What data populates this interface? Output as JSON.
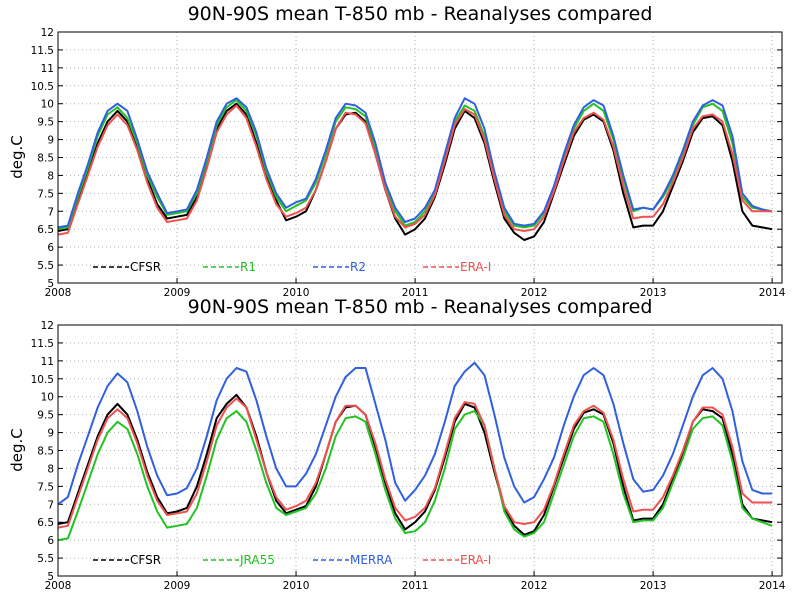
{
  "chart_data": [
    {
      "type": "line",
      "title": "90N-90S mean T-850 mb - Reanalyses compared",
      "ylabel": "deg.C",
      "xlabel": "",
      "x_ticks": [
        "2008",
        "2009",
        "2010",
        "2011",
        "2012",
        "2013",
        "2014"
      ],
      "y_ticks": [
        "5",
        "5.5",
        "6",
        "6.5",
        "7",
        "7.5",
        "8",
        "8.5",
        "9",
        "9.5",
        "10",
        "10.5",
        "11",
        "11.5",
        "12"
      ],
      "xlim": [
        2008.0,
        2014.083
      ],
      "ylim": [
        5,
        12
      ],
      "grid": true,
      "legend": "bottom-left",
      "series": [
        {
          "name": "CFSR",
          "color": "#000000",
          "values": [
            6.45,
            6.5,
            7.3,
            8.1,
            8.9,
            9.5,
            9.8,
            9.5,
            8.8,
            7.9,
            7.2,
            6.8,
            6.85,
            6.9,
            7.4,
            8.3,
            9.3,
            9.8,
            10.0,
            9.7,
            8.9,
            8.0,
            7.3,
            6.75,
            6.85,
            7.0,
            7.6,
            8.4,
            9.3,
            9.7,
            9.75,
            9.5,
            8.6,
            7.6,
            6.8,
            6.35,
            6.5,
            6.8,
            7.4,
            8.3,
            9.3,
            9.8,
            9.6,
            8.9,
            7.8,
            6.8,
            6.4,
            6.2,
            6.3,
            6.7,
            7.5,
            8.3,
            9.1,
            9.55,
            9.7,
            9.5,
            8.7,
            7.5,
            6.55,
            6.6,
            6.6,
            7.0,
            7.7,
            8.4,
            9.2,
            9.6,
            9.65,
            9.4,
            8.4,
            7.0,
            6.6,
            6.55,
            6.5
          ]
        },
        {
          "name": "R1",
          "color": "#22c322",
          "values": [
            6.5,
            6.55,
            7.4,
            8.2,
            9.1,
            9.7,
            9.9,
            9.6,
            8.9,
            8.0,
            7.4,
            6.9,
            6.95,
            7.0,
            7.5,
            8.4,
            9.4,
            9.9,
            10.1,
            9.8,
            9.1,
            8.1,
            7.4,
            7.0,
            7.15,
            7.3,
            7.8,
            8.6,
            9.5,
            9.9,
            9.85,
            9.65,
            8.8,
            7.7,
            7.0,
            6.6,
            6.7,
            7.0,
            7.5,
            8.5,
            9.5,
            9.95,
            9.8,
            9.1,
            8.0,
            7.0,
            6.6,
            6.55,
            6.6,
            6.95,
            7.6,
            8.5,
            9.3,
            9.8,
            10.0,
            9.8,
            9.0,
            7.9,
            7.0,
            7.1,
            7.05,
            7.4,
            7.9,
            8.6,
            9.4,
            9.9,
            10.0,
            9.8,
            8.9,
            7.4,
            7.1,
            7.05,
            7.0
          ]
        },
        {
          "name": "R2",
          "color": "#3060e0",
          "values": [
            6.55,
            6.6,
            7.5,
            8.3,
            9.2,
            9.8,
            10.0,
            9.8,
            9.0,
            8.1,
            7.5,
            6.95,
            7.0,
            7.05,
            7.6,
            8.5,
            9.5,
            10.0,
            10.15,
            9.9,
            9.2,
            8.2,
            7.5,
            7.1,
            7.25,
            7.35,
            7.9,
            8.7,
            9.6,
            10.0,
            9.95,
            9.75,
            8.9,
            7.8,
            7.1,
            6.7,
            6.8,
            7.1,
            7.6,
            8.6,
            9.6,
            10.15,
            10.0,
            9.3,
            8.1,
            7.1,
            6.65,
            6.6,
            6.65,
            7.0,
            7.7,
            8.6,
            9.4,
            9.9,
            10.1,
            9.95,
            9.1,
            8.0,
            7.05,
            7.1,
            7.05,
            7.45,
            8.0,
            8.7,
            9.5,
            9.95,
            10.1,
            9.95,
            9.1,
            7.5,
            7.15,
            7.05,
            7.0
          ]
        },
        {
          "name": "ERA-I",
          "color": "#f05050",
          "values": [
            6.35,
            6.4,
            7.2,
            8.0,
            8.8,
            9.4,
            9.7,
            9.4,
            8.7,
            7.8,
            7.1,
            6.7,
            6.75,
            6.8,
            7.3,
            8.2,
            9.2,
            9.7,
            9.95,
            9.6,
            8.8,
            7.9,
            7.2,
            6.85,
            6.95,
            7.1,
            7.6,
            8.4,
            9.3,
            9.75,
            9.7,
            9.45,
            8.6,
            7.6,
            6.85,
            6.55,
            6.65,
            6.9,
            7.45,
            8.4,
            9.4,
            9.85,
            9.7,
            9.0,
            7.9,
            6.9,
            6.5,
            6.45,
            6.5,
            6.85,
            7.55,
            8.4,
            9.2,
            9.6,
            9.75,
            9.55,
            8.8,
            7.7,
            6.8,
            6.85,
            6.85,
            7.2,
            7.8,
            8.5,
            9.3,
            9.65,
            9.7,
            9.5,
            8.6,
            7.3,
            7.0,
            7.0,
            7.0
          ]
        }
      ]
    },
    {
      "type": "line",
      "title": "90N-90S mean T-850 mb - Reanalyses compared",
      "ylabel": "deg.C",
      "xlabel": "",
      "x_ticks": [
        "2008",
        "2009",
        "2010",
        "2011",
        "2012",
        "2013",
        "2014"
      ],
      "y_ticks": [
        "5",
        "5.5",
        "6",
        "6.5",
        "7",
        "7.5",
        "8",
        "8.5",
        "9",
        "9.5",
        "10",
        "10.5",
        "11",
        "11.5",
        "12"
      ],
      "xlim": [
        2008.0,
        2014.083
      ],
      "ylim": [
        5,
        12
      ],
      "grid": true,
      "legend": "bottom-left",
      "series": [
        {
          "name": "CFSR",
          "color": "#000000",
          "values": [
            6.45,
            6.5,
            7.3,
            8.1,
            8.9,
            9.5,
            9.8,
            9.5,
            8.8,
            7.9,
            7.2,
            6.75,
            6.8,
            6.9,
            7.5,
            8.4,
            9.4,
            9.8,
            10.05,
            9.7,
            8.9,
            7.9,
            7.1,
            6.75,
            6.85,
            6.95,
            7.5,
            8.4,
            9.3,
            9.7,
            9.75,
            9.5,
            8.6,
            7.6,
            6.75,
            6.3,
            6.5,
            6.8,
            7.4,
            8.3,
            9.3,
            9.8,
            9.7,
            9.0,
            7.9,
            6.9,
            6.4,
            6.15,
            6.25,
            6.7,
            7.5,
            8.3,
            9.1,
            9.55,
            9.65,
            9.5,
            8.7,
            7.5,
            6.55,
            6.6,
            6.6,
            7.0,
            7.7,
            8.4,
            9.3,
            9.65,
            9.6,
            9.4,
            8.4,
            7.0,
            6.6,
            6.55,
            6.5
          ]
        },
        {
          "name": "JRA55",
          "color": "#22c322",
          "values": [
            6.0,
            6.05,
            6.8,
            7.6,
            8.4,
            9.0,
            9.3,
            9.1,
            8.4,
            7.5,
            6.8,
            6.35,
            6.4,
            6.45,
            6.9,
            7.8,
            8.8,
            9.4,
            9.6,
            9.3,
            8.5,
            7.6,
            6.9,
            6.7,
            6.8,
            6.9,
            7.3,
            8.0,
            8.9,
            9.4,
            9.45,
            9.3,
            8.4,
            7.4,
            6.6,
            6.2,
            6.25,
            6.5,
            7.1,
            8.0,
            9.1,
            9.5,
            9.6,
            9.2,
            8.0,
            6.8,
            6.3,
            6.1,
            6.2,
            6.5,
            7.3,
            8.1,
            8.9,
            9.4,
            9.45,
            9.3,
            8.4,
            7.3,
            6.5,
            6.55,
            6.55,
            6.9,
            7.6,
            8.3,
            9.1,
            9.4,
            9.45,
            9.2,
            8.2,
            6.9,
            6.6,
            6.5,
            6.4
          ]
        },
        {
          "name": "MERRA",
          "color": "#3060e0",
          "values": [
            7.0,
            7.2,
            8.1,
            8.9,
            9.7,
            10.3,
            10.65,
            10.4,
            9.6,
            8.6,
            7.8,
            7.25,
            7.3,
            7.45,
            8.0,
            8.9,
            9.9,
            10.5,
            10.8,
            10.7,
            9.9,
            8.9,
            8.0,
            7.5,
            7.5,
            7.85,
            8.4,
            9.2,
            10.0,
            10.55,
            10.8,
            10.8,
            9.8,
            8.8,
            7.6,
            7.1,
            7.4,
            7.8,
            8.4,
            9.3,
            10.3,
            10.7,
            10.95,
            10.6,
            9.5,
            8.3,
            7.5,
            7.05,
            7.2,
            7.7,
            8.3,
            9.2,
            10.0,
            10.6,
            10.8,
            10.6,
            9.8,
            8.7,
            7.7,
            7.35,
            7.4,
            7.8,
            8.4,
            9.2,
            10.0,
            10.6,
            10.8,
            10.5,
            9.6,
            8.2,
            7.4,
            7.3,
            7.3
          ]
        },
        {
          "name": "ERA-I",
          "color": "#f05050",
          "values": [
            6.35,
            6.4,
            7.2,
            8.0,
            8.8,
            9.4,
            9.65,
            9.4,
            8.7,
            7.8,
            7.1,
            6.7,
            6.75,
            6.8,
            7.3,
            8.2,
            9.2,
            9.7,
            9.95,
            9.7,
            8.8,
            7.9,
            7.2,
            6.85,
            6.95,
            7.1,
            7.6,
            8.4,
            9.3,
            9.75,
            9.75,
            9.5,
            8.7,
            7.7,
            6.9,
            6.55,
            6.65,
            6.9,
            7.45,
            8.4,
            9.4,
            9.85,
            9.8,
            9.2,
            8.0,
            6.95,
            6.5,
            6.45,
            6.5,
            6.85,
            7.55,
            8.4,
            9.2,
            9.6,
            9.75,
            9.55,
            8.8,
            7.7,
            6.8,
            6.85,
            6.85,
            7.2,
            7.8,
            8.5,
            9.3,
            9.7,
            9.7,
            9.5,
            8.6,
            7.3,
            7.05,
            7.05,
            7.05
          ]
        }
      ]
    }
  ]
}
